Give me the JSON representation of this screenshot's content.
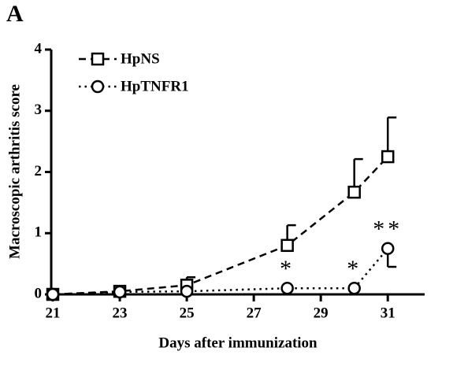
{
  "panel_label": "A",
  "chart_data": {
    "type": "line",
    "xlabel": "Days after immunization",
    "ylabel": "Macroscopic arthritis score",
    "x": [
      21,
      23,
      25,
      28,
      30,
      31
    ],
    "xlim": [
      21,
      32.1
    ],
    "xticks": [
      21,
      23,
      25,
      27,
      29,
      31
    ],
    "ylim": [
      0,
      4
    ],
    "yticks": [
      0,
      1,
      2,
      3,
      4
    ],
    "legend": "top-left",
    "series": [
      {
        "name": "HpNS",
        "color": "#000000",
        "marker": "square",
        "dash": "dashed",
        "values": [
          0,
          0.05,
          0.15,
          0.8,
          1.67,
          2.25
        ],
        "errors": [
          null,
          null,
          0.13,
          0.33,
          0.54,
          0.64
        ],
        "error_direction": "up"
      },
      {
        "name": "HpTNFR1",
        "color": "#000000",
        "marker": "circle",
        "dash": "dotted",
        "values": [
          0,
          0.04,
          0.05,
          0.1,
          0.1,
          0.75
        ],
        "errors": [
          null,
          null,
          null,
          null,
          null,
          0.3
        ],
        "error_direction": "down"
      }
    ],
    "annotations": [
      {
        "text": "*",
        "x": 28
      },
      {
        "text": "*",
        "x": 30
      },
      {
        "text": "**",
        "x": 31
      }
    ]
  }
}
